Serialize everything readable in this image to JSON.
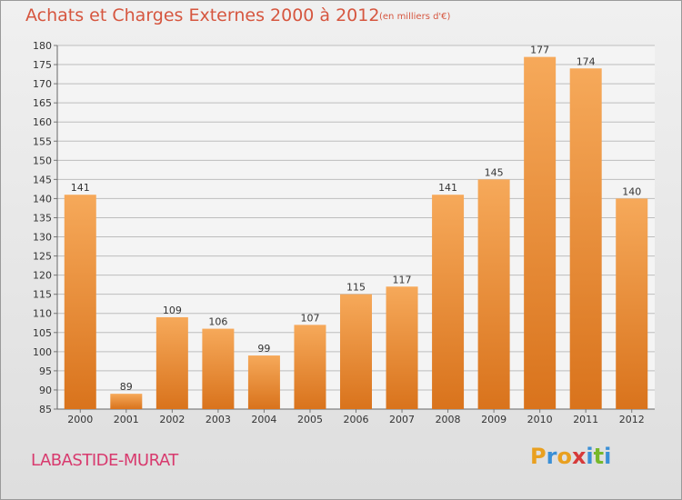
{
  "title": "Achats et Charges Externes 2000 à 2012",
  "subtitle": "(en milliers d'€)",
  "town": "LABASTIDE-MURAT",
  "logo": {
    "letters": [
      "P",
      "r",
      "o",
      "x",
      "i",
      "t",
      "i"
    ],
    "colors": [
      "#e9a020",
      "#3a8fd6",
      "#e9a020",
      "#d63a3a",
      "#3a8fd6",
      "#77b82a",
      "#3a8fd6"
    ]
  },
  "colors": {
    "bar_top": "#f6a95a",
    "bar_bottom": "#d9731c",
    "grid": "#bdbdbd",
    "title": "#d6563f"
  },
  "chart_data": {
    "type": "bar",
    "title": "Achats et Charges Externes 2000 à 2012",
    "subtitle": "(en milliers d'€)",
    "categories": [
      "2000",
      "2001",
      "2002",
      "2003",
      "2004",
      "2005",
      "2006",
      "2007",
      "2008",
      "2009",
      "2010",
      "2011",
      "2012"
    ],
    "values": [
      141,
      89,
      109,
      106,
      99,
      107,
      115,
      117,
      141,
      145,
      177,
      174,
      140
    ],
    "ylim": [
      85,
      180
    ],
    "ytick_step": 5,
    "grid": true
  }
}
